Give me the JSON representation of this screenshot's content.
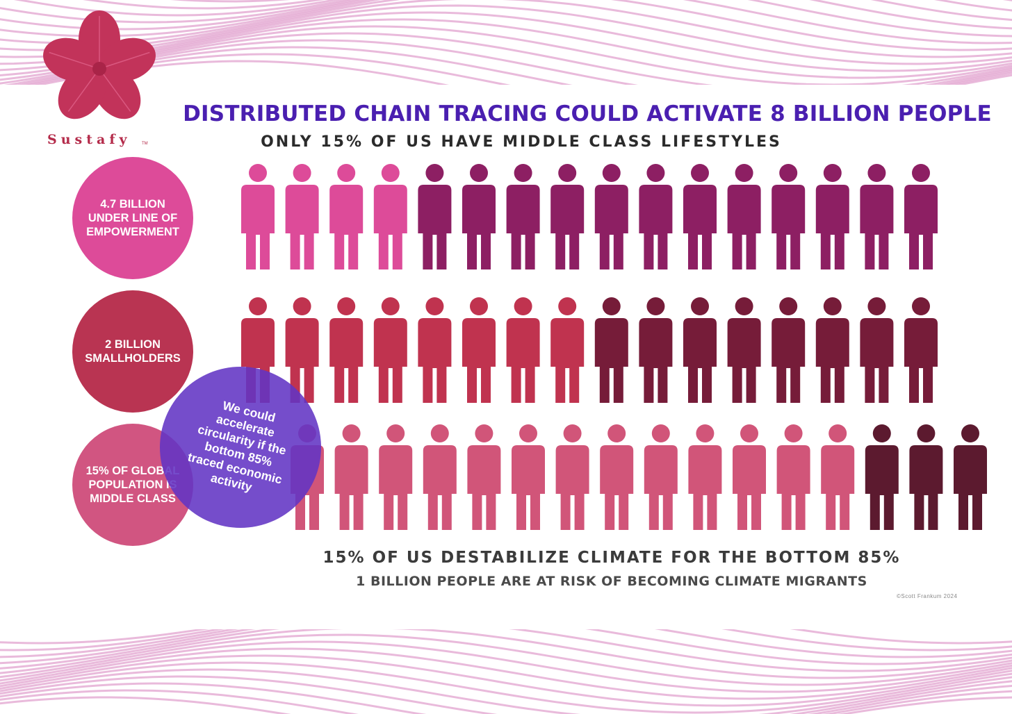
{
  "brand": {
    "name": "Sustafy",
    "tm": "TM"
  },
  "title": "DISTRIBUTED CHAIN TRACING COULD ACTIVATE 8 BILLION PEOPLE",
  "subtitle": "ONLY 15% OF US HAVE MIDDLE CLASS LIFESTYLES",
  "bubbles": [
    {
      "label": "4.7 BILLION\nUNDER LINE OF\nEMPOWERMENT"
    },
    {
      "label": "2 BILLION\nSMALLHOLDERS"
    },
    {
      "label": "15% OF GLOBAL\nPOPULATION IS\nMIDDLE CLASS"
    }
  ],
  "callout": "We could\naccelerate\ncircularity if the\nbottom 85%\ntraced economic\nactivity",
  "footer": {
    "line1": "15% OF US DESTABILIZE CLIMATE FOR THE BOTTOM 85%",
    "line2": "1 BILLION PEOPLE ARE AT RISK OF BECOMING CLIMATE MIGRANTS",
    "credit": "©Scott Frankum 2024"
  },
  "rows": [
    {
      "highlight_count": 4,
      "colors": {
        "highlight": "#dd4b99",
        "rest": "#8d1f63"
      }
    },
    {
      "highlight_count": 8,
      "colors": {
        "highlight": "#c0334f",
        "rest": "#761c39"
      }
    },
    {
      "highlight_count": 13,
      "colors": {
        "highlight": "#d15579",
        "rest": "#5c1a2f"
      }
    }
  ],
  "people_per_row": 16,
  "colors": {
    "title": "#4a1fb0",
    "wave": "#e2a3cf",
    "callout": "#6234c4"
  }
}
